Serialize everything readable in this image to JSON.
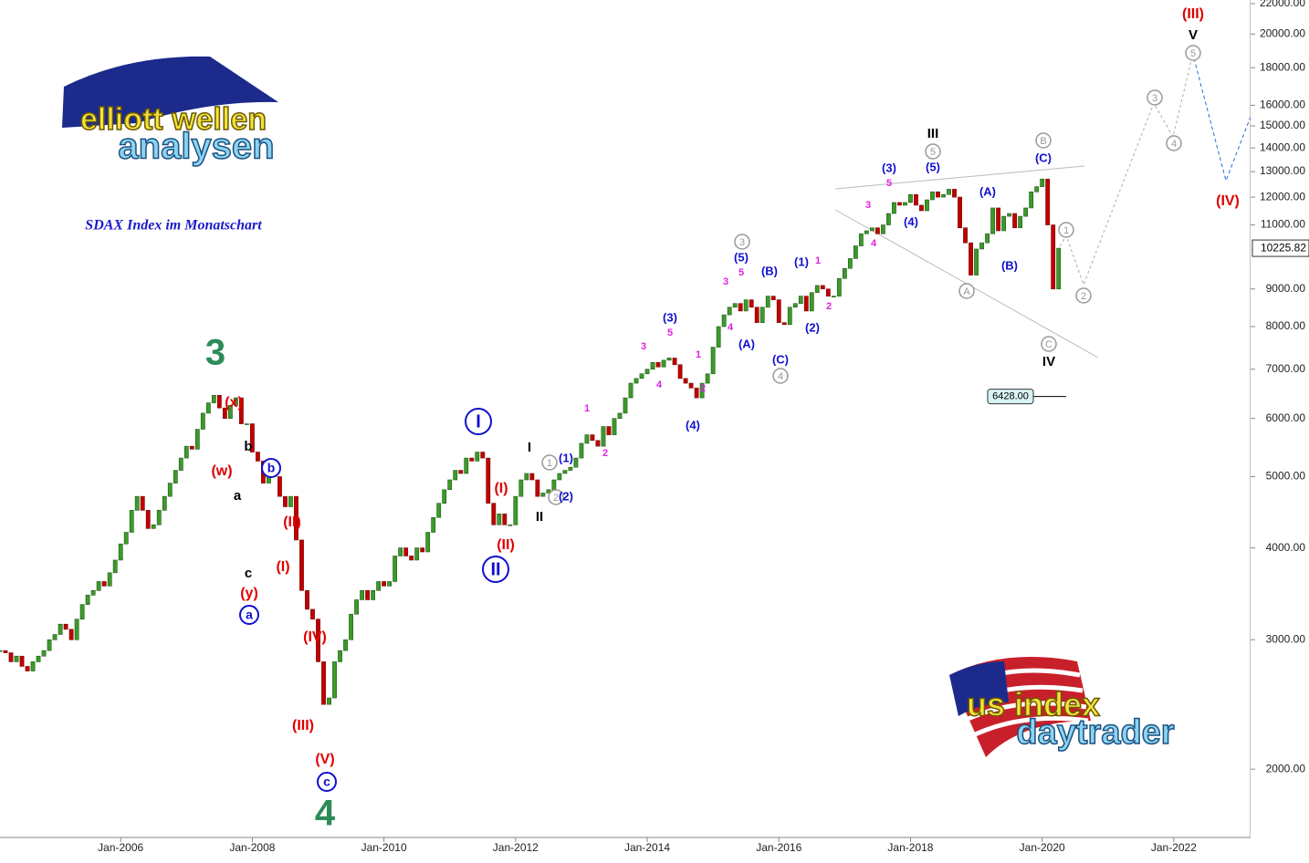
{
  "chart_data": {
    "type": "candlestick",
    "subtitle": "SDAX Index im Monatschart",
    "log_scale": true,
    "up_color": "#3c9a2a",
    "down_color": "#c00000",
    "x": [
      "2004-03",
      "2004-04",
      "2004-05",
      "2004-06",
      "2004-07",
      "2004-08",
      "2004-09",
      "2004-10",
      "2004-11",
      "2004-12",
      "2005-01",
      "2005-02",
      "2005-03",
      "2005-04",
      "2005-05",
      "2005-06",
      "2005-07",
      "2005-08",
      "2005-09",
      "2005-10",
      "2005-11",
      "2005-12",
      "2006-01",
      "2006-02",
      "2006-03",
      "2006-04",
      "2006-05",
      "2006-06",
      "2006-07",
      "2006-08",
      "2006-09",
      "2006-10",
      "2006-11",
      "2006-12",
      "2007-01",
      "2007-02",
      "2007-03",
      "2007-04",
      "2007-05",
      "2007-06",
      "2007-07",
      "2007-08",
      "2007-09",
      "2007-10",
      "2007-11",
      "2007-12",
      "2008-01",
      "2008-02",
      "2008-03",
      "2008-04",
      "2008-05",
      "2008-06",
      "2008-07",
      "2008-08",
      "2008-09",
      "2008-10",
      "2008-11",
      "2008-12",
      "2009-01",
      "2009-02",
      "2009-03",
      "2009-04",
      "2009-05",
      "2009-06",
      "2009-07",
      "2009-08",
      "2009-09",
      "2009-10",
      "2009-11",
      "2009-12",
      "2010-01",
      "2010-02",
      "2010-03",
      "2010-04",
      "2010-05",
      "2010-06",
      "2010-07",
      "2010-08",
      "2010-09",
      "2010-10",
      "2010-11",
      "2010-12",
      "2011-01",
      "2011-02",
      "2011-03",
      "2011-04",
      "2011-05",
      "2011-06",
      "2011-07",
      "2011-08",
      "2011-09",
      "2011-10",
      "2011-11",
      "2011-12",
      "2012-01",
      "2012-02",
      "2012-03",
      "2012-04",
      "2012-05",
      "2012-06",
      "2012-07",
      "2012-08",
      "2012-09",
      "2012-10",
      "2012-11",
      "2012-12",
      "2013-01",
      "2013-02",
      "2013-03",
      "2013-04",
      "2013-05",
      "2013-06",
      "2013-07",
      "2013-08",
      "2013-09",
      "2013-10",
      "2013-11",
      "2013-12",
      "2014-01",
      "2014-02",
      "2014-03",
      "2014-04",
      "2014-05",
      "2014-06",
      "2014-07",
      "2014-08",
      "2014-09",
      "2014-10",
      "2014-11",
      "2014-12",
      "2015-01",
      "2015-02",
      "2015-03",
      "2015-04",
      "2015-05",
      "2015-06",
      "2015-07",
      "2015-08",
      "2015-09",
      "2015-10",
      "2015-11",
      "2015-12",
      "2016-01",
      "2016-02",
      "2016-03",
      "2016-04",
      "2016-05",
      "2016-06",
      "2016-07",
      "2016-08",
      "2016-09",
      "2016-10",
      "2016-11",
      "2016-12",
      "2017-01",
      "2017-02",
      "2017-03",
      "2017-04",
      "2017-05",
      "2017-06",
      "2017-07",
      "2017-08",
      "2017-09",
      "2017-10",
      "2017-11",
      "2017-12",
      "2018-01",
      "2018-02",
      "2018-03",
      "2018-04",
      "2018-05",
      "2018-06",
      "2018-07",
      "2018-08",
      "2018-09",
      "2018-10",
      "2018-11",
      "2018-12",
      "2019-01",
      "2019-02",
      "2019-03",
      "2019-04",
      "2019-05",
      "2019-06",
      "2019-07",
      "2019-08",
      "2019-09",
      "2019-10",
      "2019-11",
      "2019-12",
      "2020-01",
      "2020-02",
      "2020-03",
      "2020-04"
    ],
    "values": [
      2900,
      2880,
      2800,
      2850,
      2760,
      2720,
      2800,
      2850,
      2900,
      3000,
      3050,
      3150,
      3100,
      3000,
      3200,
      3350,
      3450,
      3500,
      3600,
      3550,
      3700,
      3850,
      4050,
      4200,
      4500,
      4700,
      4500,
      4250,
      4300,
      4500,
      4700,
      4900,
      5100,
      5300,
      5500,
      5450,
      5800,
      6100,
      6300,
      6450,
      6200,
      6000,
      6250,
      6400,
      5900,
      5900,
      5400,
      5250,
      4900,
      5100,
      5000,
      4700,
      4550,
      4700,
      4100,
      3500,
      3300,
      3200,
      2800,
      2450,
      2500,
      2800,
      2900,
      3000,
      3250,
      3400,
      3500,
      3400,
      3500,
      3600,
      3550,
      3600,
      3900,
      4000,
      3900,
      3850,
      4000,
      3950,
      4200,
      4400,
      4600,
      4800,
      4950,
      5100,
      5050,
      5300,
      5250,
      5400,
      5300,
      4600,
      4300,
      4450,
      4300,
      4300,
      4700,
      4950,
      5050,
      4950,
      4700,
      4750,
      4800,
      4950,
      5050,
      5100,
      5150,
      5300,
      5550,
      5700,
      5600,
      5500,
      5850,
      5700,
      6000,
      6100,
      6400,
      6700,
      6800,
      6900,
      7000,
      7150,
      7050,
      7200,
      7250,
      7100,
      6800,
      6700,
      6600,
      6400,
      6700,
      6900,
      7500,
      8000,
      8300,
      8500,
      8600,
      8400,
      8700,
      8500,
      8100,
      8500,
      8800,
      8700,
      8100,
      8050,
      8500,
      8600,
      8800,
      8400,
      8900,
      9100,
      9000,
      8800,
      8800,
      9300,
      9600,
      9900,
      10300,
      10700,
      10800,
      10900,
      10700,
      11000,
      11400,
      11800,
      11700,
      11800,
      12100,
      11700,
      11500,
      11900,
      12200,
      12000,
      12100,
      12300,
      12000,
      10900,
      10400,
      9400,
      10200,
      10400,
      10700,
      11600,
      10800,
      11300,
      11400,
      10900,
      11300,
      11600,
      12200,
      12400,
      12700,
      11000,
      9000,
      10225.82
    ],
    "xlim": [
      "2004-03",
      "2023-03"
    ],
    "xticks": [
      {
        "value": "2006-01",
        "label": "Jan-2006"
      },
      {
        "value": "2008-01",
        "label": "Jan-2008"
      },
      {
        "value": "2010-01",
        "label": "Jan-2010"
      },
      {
        "value": "2012-01",
        "label": "Jan-2012"
      },
      {
        "value": "2014-01",
        "label": "Jan-2014"
      },
      {
        "value": "2016-01",
        "label": "Jan-2016"
      },
      {
        "value": "2018-01",
        "label": "Jan-2018"
      },
      {
        "value": "2020-01",
        "label": "Jan-2020"
      },
      {
        "value": "2022-01",
        "label": "Jan-2022"
      }
    ],
    "ylim": [
      1615,
      22250
    ],
    "yticks": [
      {
        "value": 2000,
        "label": "2000.00"
      },
      {
        "value": 3000,
        "label": "3000.00"
      },
      {
        "value": 4000,
        "label": "4000.00"
      },
      {
        "value": 5000,
        "label": "5000.00"
      },
      {
        "value": 6000,
        "label": "6000.00"
      },
      {
        "value": 7000,
        "label": "7000.00"
      },
      {
        "value": 8000,
        "label": "8000.00"
      },
      {
        "value": 9000,
        "label": "9000.00"
      },
      {
        "value": 11000,
        "label": "11000.00"
      },
      {
        "value": 12000,
        "label": "12000.00"
      },
      {
        "value": 13000,
        "label": "13000.00"
      },
      {
        "value": 14000,
        "label": "14000.00"
      },
      {
        "value": 15000,
        "label": "15000.00"
      },
      {
        "value": 16000,
        "label": "16000.00"
      },
      {
        "value": 18000,
        "label": "18000.00"
      },
      {
        "value": 20000,
        "label": "20000.00"
      },
      {
        "value": 22000,
        "label": "22000.00"
      }
    ],
    "last_price": {
      "value": 10225.82,
      "label": "10225.82"
    },
    "level": {
      "value": 6428,
      "label": "6428.00"
    },
    "annotations": [
      "3",
      "(x)",
      "(w)",
      "b",
      "b",
      "a",
      "c",
      "(y)",
      "a",
      "(II)",
      "(I)",
      "(IV)",
      "(III)",
      "(V)",
      "c",
      "4",
      "I",
      "II",
      "(I)",
      "(II)",
      "I",
      "II",
      "1",
      "(1)",
      "2",
      "(2)",
      "1",
      "2",
      "3",
      "4",
      "(3)",
      "5",
      "1",
      "2",
      "(4)",
      "3",
      "4",
      "(5)",
      "5",
      "3",
      "(A)",
      "(B)",
      "(C)",
      "4",
      "(1)",
      "1",
      "2",
      "(2)",
      "3",
      "4",
      "5",
      "(3)",
      "(4)",
      "(5)",
      "5",
      "III",
      "(A)",
      "(B)",
      "A",
      "B",
      "(C)",
      "C",
      "IV",
      "1",
      "2",
      "3",
      "4",
      "5",
      "V",
      "(III)",
      "(IV)"
    ]
  },
  "logos": {
    "top": [
      "elliott wellen",
      "analysen"
    ],
    "bottom": [
      "us index",
      "daytrader"
    ]
  }
}
